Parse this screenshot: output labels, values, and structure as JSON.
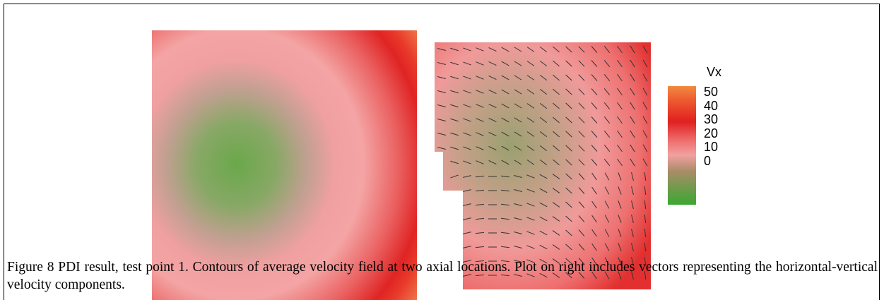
{
  "figure": {
    "colorbar": {
      "title": "Vx",
      "labels": [
        "50",
        "40",
        "30",
        "20",
        "10",
        "0"
      ]
    },
    "caption": "Figure 8 PDI result, test point 1. Contours of average velocity field at two axial locations. Plot on right includes vectors representing the horizontal-vertical velocity components."
  }
}
